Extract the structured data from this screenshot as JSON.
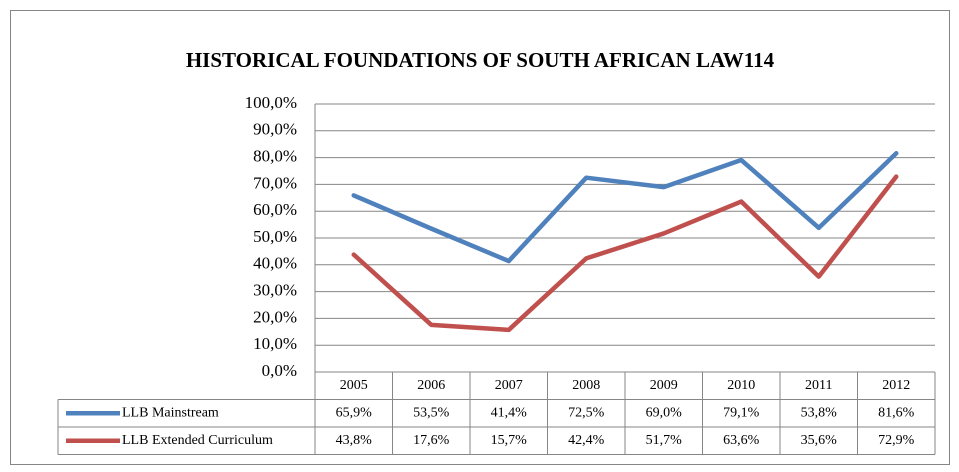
{
  "chart_data": {
    "type": "line",
    "title": "HISTORICAL FOUNDATIONS OF SOUTH AFRICAN LAW114",
    "categories": [
      "2005",
      "2006",
      "2007",
      "2008",
      "2009",
      "2010",
      "2011",
      "2012"
    ],
    "series": [
      {
        "name": "LLB Mainstream",
        "color": "#4f81bd",
        "values": [
          65.9,
          53.5,
          41.4,
          72.5,
          69.0,
          79.1,
          53.8,
          81.6
        ],
        "value_labels": [
          "65,9%",
          "53,5%",
          "41,4%",
          "72,5%",
          "69,0%",
          "79,1%",
          "53,8%",
          "81,6%"
        ]
      },
      {
        "name": "LLB Extended Curriculum",
        "color": "#c0504d",
        "values": [
          43.8,
          17.6,
          15.7,
          42.4,
          51.7,
          63.6,
          35.6,
          72.9
        ],
        "value_labels": [
          "43,8%",
          "17,6%",
          "15,7%",
          "42,4%",
          "51,7%",
          "63,6%",
          "35,6%",
          "72,9%"
        ]
      }
    ],
    "ylim": [
      0,
      100
    ],
    "yticks": [
      {
        "value": 0,
        "label": "0,0%"
      },
      {
        "value": 10,
        "label": "10,0%"
      },
      {
        "value": 20,
        "label": "20,0%"
      },
      {
        "value": 30,
        "label": "30,0%"
      },
      {
        "value": 40,
        "label": "40,0%"
      },
      {
        "value": 50,
        "label": "50,0%"
      },
      {
        "value": 60,
        "label": "60,0%"
      },
      {
        "value": 70,
        "label": "70,0%"
      },
      {
        "value": 80,
        "label": "80,0%"
      },
      {
        "value": 90,
        "label": "90,0%"
      },
      {
        "value": 100,
        "label": "100,0%"
      }
    ],
    "grid": true
  }
}
